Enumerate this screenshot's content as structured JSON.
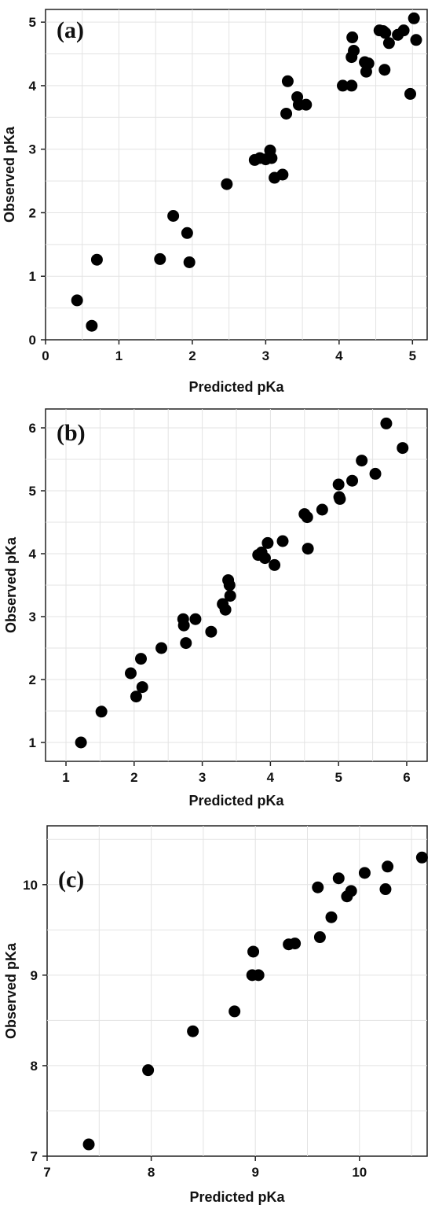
{
  "chart_data": [
    {
      "type": "scatter",
      "panel_label": "(a)",
      "xlabel": "Predicted pKa",
      "ylabel": "Observed pKa",
      "xlim": [
        0,
        5.2
      ],
      "ylim": [
        0,
        5.2
      ],
      "xticks": [
        0,
        1,
        2,
        3,
        4,
        5
      ],
      "yticks": [
        0,
        1,
        2,
        3,
        4,
        5
      ],
      "grid": true,
      "points": [
        {
          "x": 0.43,
          "y": 0.62
        },
        {
          "x": 0.63,
          "y": 0.22
        },
        {
          "x": 0.7,
          "y": 1.26
        },
        {
          "x": 1.56,
          "y": 1.27
        },
        {
          "x": 1.74,
          "y": 1.95
        },
        {
          "x": 1.93,
          "y": 1.68
        },
        {
          "x": 1.96,
          "y": 1.22
        },
        {
          "x": 2.47,
          "y": 2.45
        },
        {
          "x": 2.85,
          "y": 2.83
        },
        {
          "x": 2.92,
          "y": 2.86
        },
        {
          "x": 3.0,
          "y": 2.84
        },
        {
          "x": 3.06,
          "y": 2.98
        },
        {
          "x": 3.08,
          "y": 2.86
        },
        {
          "x": 3.12,
          "y": 2.55
        },
        {
          "x": 3.23,
          "y": 2.6
        },
        {
          "x": 3.28,
          "y": 3.56
        },
        {
          "x": 3.3,
          "y": 4.07
        },
        {
          "x": 3.43,
          "y": 3.82
        },
        {
          "x": 3.45,
          "y": 3.7
        },
        {
          "x": 3.55,
          "y": 3.7
        },
        {
          "x": 4.05,
          "y": 4.0
        },
        {
          "x": 4.17,
          "y": 4.0
        },
        {
          "x": 4.17,
          "y": 4.45
        },
        {
          "x": 4.18,
          "y": 4.76
        },
        {
          "x": 4.2,
          "y": 4.55
        },
        {
          "x": 4.35,
          "y": 4.37
        },
        {
          "x": 4.37,
          "y": 4.22
        },
        {
          "x": 4.4,
          "y": 4.35
        },
        {
          "x": 4.55,
          "y": 4.87
        },
        {
          "x": 4.6,
          "y": 4.86
        },
        {
          "x": 4.62,
          "y": 4.25
        },
        {
          "x": 4.63,
          "y": 4.83
        },
        {
          "x": 4.68,
          "y": 4.67
        },
        {
          "x": 4.8,
          "y": 4.8
        },
        {
          "x": 4.88,
          "y": 4.87
        },
        {
          "x": 4.97,
          "y": 3.87
        },
        {
          "x": 5.02,
          "y": 5.06
        },
        {
          "x": 5.05,
          "y": 4.72
        }
      ]
    },
    {
      "type": "scatter",
      "panel_label": "(b)",
      "xlabel": "Predicted pKa",
      "ylabel": "Observed pKa",
      "xlim": [
        0.7,
        6.3
      ],
      "ylim": [
        0.7,
        6.3
      ],
      "xticks": [
        1,
        2,
        3,
        4,
        5,
        6
      ],
      "yticks": [
        1,
        2,
        3,
        4,
        5,
        6
      ],
      "grid": true,
      "points": [
        {
          "x": 1.22,
          "y": 1.0
        },
        {
          "x": 1.52,
          "y": 1.49
        },
        {
          "x": 1.95,
          "y": 2.1
        },
        {
          "x": 2.03,
          "y": 1.73
        },
        {
          "x": 2.1,
          "y": 2.33
        },
        {
          "x": 2.12,
          "y": 1.88
        },
        {
          "x": 2.4,
          "y": 2.5
        },
        {
          "x": 2.72,
          "y": 2.96
        },
        {
          "x": 2.73,
          "y": 2.86
        },
        {
          "x": 2.76,
          "y": 2.58
        },
        {
          "x": 2.9,
          "y": 2.96
        },
        {
          "x": 3.13,
          "y": 2.76
        },
        {
          "x": 3.3,
          "y": 3.2
        },
        {
          "x": 3.34,
          "y": 3.11
        },
        {
          "x": 3.38,
          "y": 3.58
        },
        {
          "x": 3.4,
          "y": 3.5
        },
        {
          "x": 3.41,
          "y": 3.33
        },
        {
          "x": 3.82,
          "y": 3.98
        },
        {
          "x": 3.87,
          "y": 4.02
        },
        {
          "x": 3.92,
          "y": 3.93
        },
        {
          "x": 3.96,
          "y": 4.17
        },
        {
          "x": 4.06,
          "y": 3.82
        },
        {
          "x": 4.18,
          "y": 4.2
        },
        {
          "x": 4.5,
          "y": 4.63
        },
        {
          "x": 4.54,
          "y": 4.58
        },
        {
          "x": 4.55,
          "y": 4.08
        },
        {
          "x": 4.76,
          "y": 4.7
        },
        {
          "x": 5.0,
          "y": 5.1
        },
        {
          "x": 5.01,
          "y": 4.9
        },
        {
          "x": 5.02,
          "y": 4.87
        },
        {
          "x": 5.2,
          "y": 5.16
        },
        {
          "x": 5.34,
          "y": 5.48
        },
        {
          "x": 5.54,
          "y": 5.27
        },
        {
          "x": 5.7,
          "y": 6.07
        },
        {
          "x": 5.94,
          "y": 5.68
        }
      ]
    },
    {
      "type": "scatter",
      "panel_label": "(c)",
      "xlabel": "Predicted pKa",
      "ylabel": "Observed pKa",
      "xlim": [
        7.0,
        10.65
      ],
      "ylim": [
        7.0,
        10.65
      ],
      "xticks": [
        7,
        8,
        9,
        10
      ],
      "yticks": [
        7,
        8,
        9,
        10
      ],
      "grid": true,
      "points": [
        {
          "x": 7.4,
          "y": 7.13
        },
        {
          "x": 7.97,
          "y": 7.95
        },
        {
          "x": 8.4,
          "y": 8.38
        },
        {
          "x": 8.8,
          "y": 8.6
        },
        {
          "x": 8.97,
          "y": 9.0
        },
        {
          "x": 8.98,
          "y": 9.26
        },
        {
          "x": 9.03,
          "y": 9.0
        },
        {
          "x": 9.32,
          "y": 9.34
        },
        {
          "x": 9.38,
          "y": 9.35
        },
        {
          "x": 9.6,
          "y": 9.97
        },
        {
          "x": 9.62,
          "y": 9.42
        },
        {
          "x": 9.73,
          "y": 9.64
        },
        {
          "x": 9.8,
          "y": 10.07
        },
        {
          "x": 9.88,
          "y": 9.87
        },
        {
          "x": 9.92,
          "y": 9.93
        },
        {
          "x": 10.05,
          "y": 10.13
        },
        {
          "x": 10.25,
          "y": 9.95
        },
        {
          "x": 10.27,
          "y": 10.2
        },
        {
          "x": 10.6,
          "y": 10.3
        }
      ]
    }
  ]
}
